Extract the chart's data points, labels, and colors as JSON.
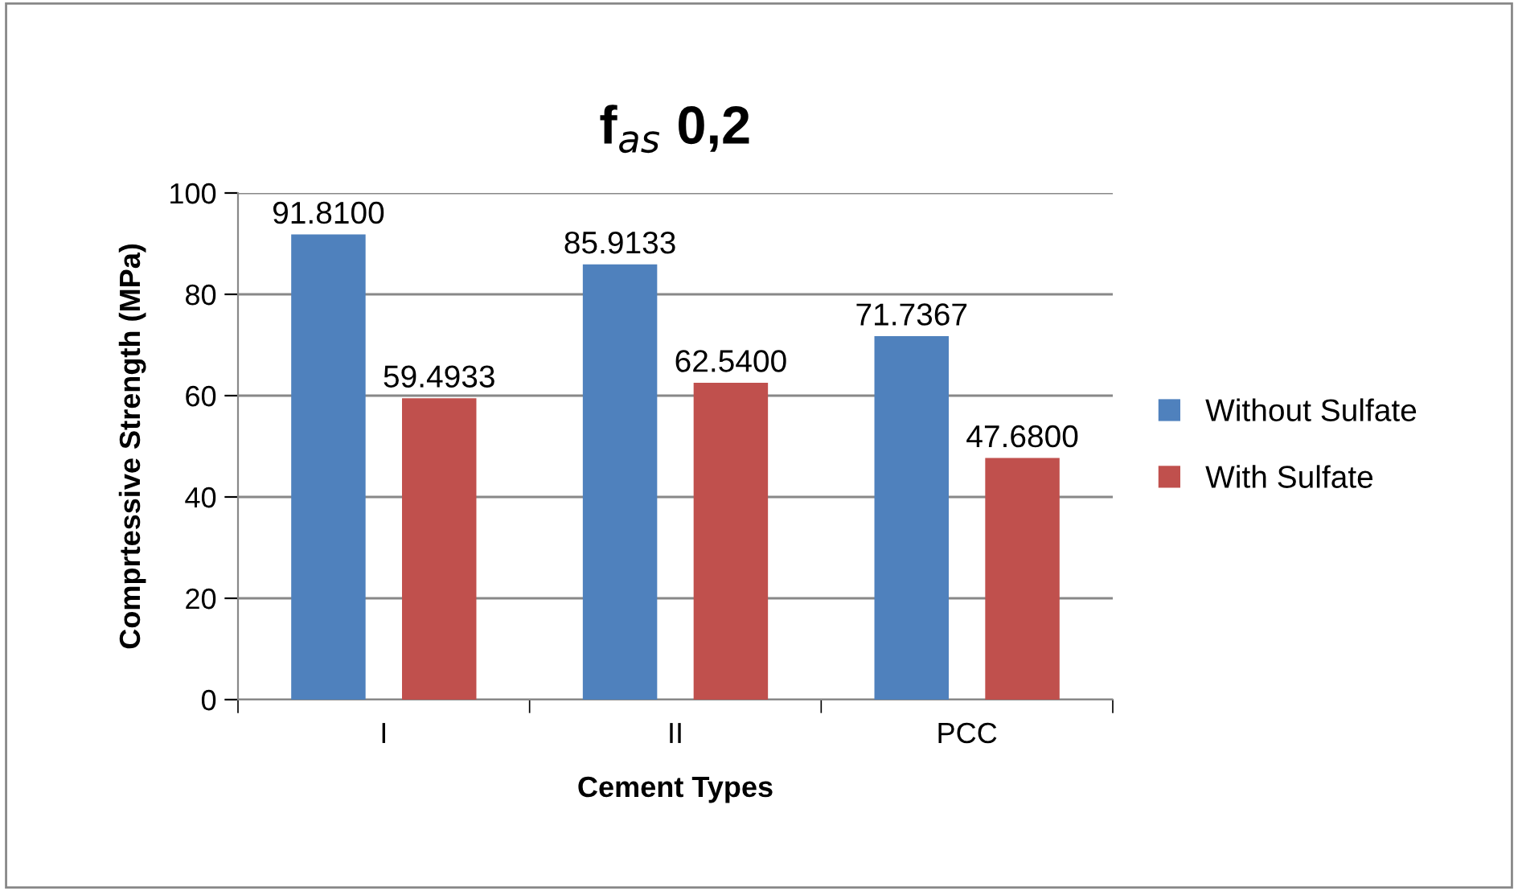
{
  "chart_data": {
    "type": "bar",
    "title": "f$_{as}$ 0,2",
    "xlabel": "Cement Types",
    "ylabel": "Comprtessive Strength (MPa)",
    "categories": [
      "I",
      "II",
      "PCC"
    ],
    "series": [
      {
        "name": "Without Sulfate",
        "color": "#4f81bd",
        "values": [
          91.81,
          85.9133,
          71.7367
        ],
        "value_labels": [
          "91.8100",
          "85.9133",
          "71.7367"
        ]
      },
      {
        "name": "With Sulfate",
        "color": "#c0504d",
        "values": [
          59.4933,
          62.54,
          47.68
        ],
        "value_labels": [
          "59.4933",
          "62.5400",
          "47.6800"
        ]
      }
    ],
    "ylim": [
      0,
      100
    ],
    "yticks": [
      0,
      20,
      40,
      60,
      80,
      100
    ],
    "grid": "y",
    "legend": "right"
  }
}
